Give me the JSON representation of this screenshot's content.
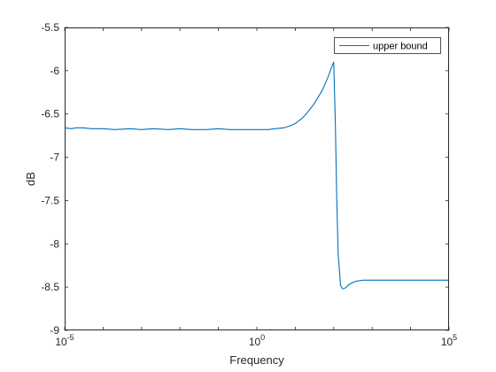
{
  "chart_data": {
    "type": "line",
    "title": "",
    "xlabel": "Frequency",
    "ylabel": "dB",
    "xscale": "log",
    "xlim": [
      1e-05,
      100000
    ],
    "ylim": [
      -9,
      -5.5
    ],
    "grid": false,
    "legend_position": "top-right",
    "x_ticks": [
      {
        "value": 1e-05,
        "base": "10",
        "exp": "-5"
      },
      {
        "value": 1,
        "base": "10",
        "exp": "0"
      },
      {
        "value": 100000,
        "base": "10",
        "exp": "5"
      }
    ],
    "y_ticks": [
      {
        "value": -5.5,
        "label": "-5.5"
      },
      {
        "value": -6,
        "label": "-6"
      },
      {
        "value": -6.5,
        "label": "-6.5"
      },
      {
        "value": -7,
        "label": "-7"
      },
      {
        "value": -7.5,
        "label": "-7.5"
      },
      {
        "value": -8,
        "label": "-8"
      },
      {
        "value": -8.5,
        "label": "-8.5"
      },
      {
        "value": -9,
        "label": "-9"
      }
    ],
    "series": [
      {
        "name": "upper bound",
        "color": "#0072bd",
        "x": [
          1e-05,
          1.5e-05,
          2e-05,
          3e-05,
          5e-05,
          0.0001,
          0.0002,
          0.0005,
          0.001,
          0.002,
          0.005,
          0.01,
          0.02,
          0.05,
          0.1,
          0.2,
          0.5,
          1,
          2,
          3,
          5,
          7,
          10,
          15,
          20,
          30,
          50,
          70,
          90,
          100,
          110,
          120,
          130,
          150,
          170,
          200,
          250,
          300,
          400,
          600,
          1000,
          2000,
          5000,
          10000,
          30000,
          100000
        ],
        "y": [
          -6.66,
          -6.67,
          -6.66,
          -6.66,
          -6.67,
          -6.67,
          -6.68,
          -6.67,
          -6.68,
          -6.67,
          -6.68,
          -6.67,
          -6.68,
          -6.68,
          -6.67,
          -6.68,
          -6.68,
          -6.68,
          -6.68,
          -6.67,
          -6.66,
          -6.64,
          -6.61,
          -6.55,
          -6.49,
          -6.39,
          -6.23,
          -6.08,
          -5.95,
          -5.9,
          -6.6,
          -7.5,
          -8.1,
          -8.48,
          -8.52,
          -8.51,
          -8.47,
          -8.45,
          -8.43,
          -8.42,
          -8.42,
          -8.42,
          -8.42,
          -8.42,
          -8.42,
          -8.42
        ]
      }
    ]
  }
}
